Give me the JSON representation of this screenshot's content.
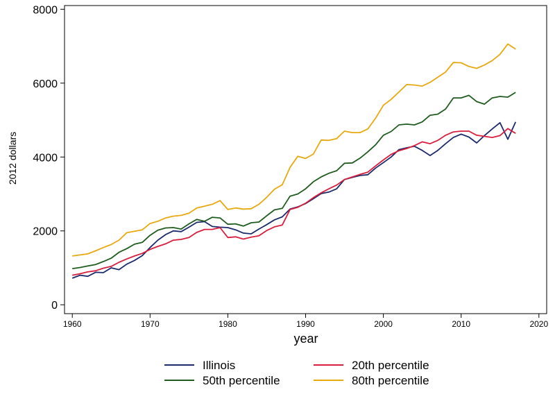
{
  "chart_data": {
    "type": "line",
    "title": "",
    "xlabel": "year",
    "ylabel": "2012 dollars",
    "xlim": [
      1959,
      2021
    ],
    "ylim": [
      -240,
      8100
    ],
    "xticks": [
      1960,
      1970,
      1980,
      1990,
      2000,
      2010,
      2020
    ],
    "yticks": [
      0,
      2000,
      4000,
      6000,
      8000
    ],
    "x_tick_labels": [
      "1960",
      "1970",
      "1980",
      "1990",
      "2000",
      "2010",
      "2020"
    ],
    "y_tick_labels": [
      "0",
      "2000",
      "4000",
      "6000",
      "8000"
    ],
    "grid": false,
    "legend_position": "bottom",
    "x": [
      1960,
      1961,
      1962,
      1963,
      1964,
      1965,
      1966,
      1967,
      1968,
      1969,
      1970,
      1971,
      1972,
      1973,
      1974,
      1975,
      1976,
      1977,
      1978,
      1979,
      1980,
      1981,
      1982,
      1983,
      1984,
      1985,
      1986,
      1987,
      1988,
      1989,
      1990,
      1991,
      1992,
      1993,
      1994,
      1995,
      1996,
      1997,
      1998,
      1999,
      2000,
      2001,
      2002,
      2003,
      2004,
      2005,
      2006,
      2007,
      2008,
      2009,
      2010,
      2011,
      2012,
      2013,
      2014,
      2015,
      2016,
      2017
    ],
    "series": [
      {
        "name": "Illinois",
        "color": "#1a2a6c",
        "values": [
          720,
          800,
          770,
          880,
          870,
          1000,
          950,
          1100,
          1200,
          1330,
          1550,
          1750,
          1900,
          2000,
          1980,
          2100,
          2230,
          2250,
          2120,
          2100,
          2090,
          2030,
          1940,
          1920,
          2050,
          2170,
          2300,
          2380,
          2590,
          2650,
          2740,
          2870,
          3010,
          3050,
          3140,
          3390,
          3450,
          3500,
          3520,
          3700,
          3850,
          4000,
          4200,
          4250,
          4290,
          4180,
          4040,
          4180,
          4360,
          4530,
          4620,
          4540,
          4380,
          4580,
          4760,
          4930,
          4480,
          4950
        ]
      },
      {
        "name": "20th percentile",
        "color": "#d81e3c",
        "values": [
          800,
          840,
          890,
          920,
          990,
          1040,
          1150,
          1240,
          1320,
          1390,
          1500,
          1580,
          1650,
          1750,
          1770,
          1820,
          1960,
          2040,
          2040,
          2090,
          1820,
          1840,
          1780,
          1830,
          1870,
          2010,
          2110,
          2160,
          2580,
          2640,
          2750,
          2900,
          3030,
          3140,
          3240,
          3390,
          3460,
          3530,
          3590,
          3760,
          3920,
          4070,
          4170,
          4230,
          4310,
          4410,
          4360,
          4450,
          4590,
          4680,
          4700,
          4700,
          4590,
          4560,
          4530,
          4580,
          4770,
          4640
        ]
      },
      {
        "name": "50th percentile",
        "color": "#1e5c1e",
        "values": [
          980,
          1010,
          1050,
          1090,
          1170,
          1260,
          1420,
          1520,
          1640,
          1690,
          1880,
          2020,
          2080,
          2090,
          2050,
          2190,
          2310,
          2260,
          2370,
          2350,
          2180,
          2190,
          2130,
          2220,
          2240,
          2410,
          2570,
          2610,
          2940,
          3000,
          3140,
          3330,
          3460,
          3560,
          3630,
          3830,
          3840,
          3970,
          4140,
          4330,
          4590,
          4690,
          4870,
          4890,
          4870,
          4950,
          5130,
          5160,
          5300,
          5600,
          5600,
          5670,
          5500,
          5430,
          5600,
          5640,
          5620,
          5750
        ]
      },
      {
        "name": "80th percentile",
        "color": "#e8a80e",
        "values": [
          1320,
          1350,
          1380,
          1460,
          1550,
          1630,
          1750,
          1950,
          1990,
          2030,
          2200,
          2260,
          2350,
          2400,
          2420,
          2480,
          2620,
          2670,
          2720,
          2820,
          2580,
          2620,
          2590,
          2600,
          2720,
          2910,
          3130,
          3250,
          3720,
          4020,
          3960,
          4080,
          4460,
          4450,
          4500,
          4700,
          4660,
          4660,
          4760,
          5050,
          5400,
          5560,
          5760,
          5960,
          5950,
          5920,
          6020,
          6160,
          6300,
          6560,
          6550,
          6450,
          6400,
          6490,
          6610,
          6780,
          7060,
          6920
        ]
      }
    ]
  }
}
